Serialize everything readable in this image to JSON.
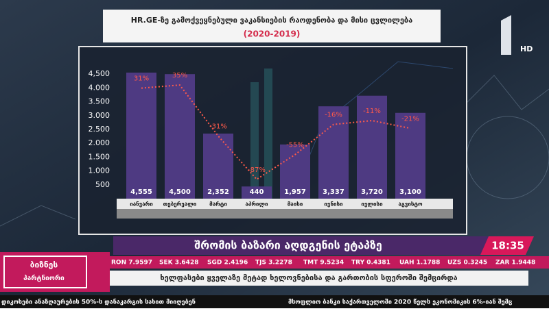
{
  "chart_data": {
    "type": "bar",
    "title": "HR.GE-ზე გამოქვეყნებული ვაკანსიების რაოდენობა და მისი ცვლილება",
    "subtitle": "(2020-2019)",
    "categories": [
      "იანვარი",
      "თებერვალი",
      "მარტი",
      "აპრილი",
      "მაისი",
      "ივნისი",
      "ივლისი",
      "აგვისტო"
    ],
    "series": [
      {
        "type": "bar",
        "color": "#4e3a82",
        "values": [
          4555,
          4500,
          2352,
          440,
          1957,
          3337,
          3720,
          3100
        ],
        "value_labels": [
          "4,555",
          "4,500",
          "2,352",
          "440",
          "1,957",
          "3,337",
          "3,720",
          "3,100"
        ]
      },
      {
        "type": "line",
        "axis": "y2",
        "color": "#ff5a4a",
        "values": [
          31,
          35,
          -31,
          -87,
          -55,
          -16,
          -11,
          -21
        ],
        "value_labels": [
          "31%",
          "35%",
          "-31%",
          "-87%",
          "-55%",
          "-16%",
          "-11%",
          "-21%"
        ]
      }
    ],
    "ylim": [
      0,
      5000
    ],
    "yticks": [
      {
        "value": 4500,
        "label": "4,500"
      },
      {
        "value": 4000,
        "label": "4.000"
      },
      {
        "value": 3500,
        "label": "3.500"
      },
      {
        "value": 3000,
        "label": "3.000"
      },
      {
        "value": 2500,
        "label": "2.500"
      },
      {
        "value": 2000,
        "label": "2.000"
      },
      {
        "value": 1500,
        "label": "1.500"
      },
      {
        "value": 1000,
        "label": "1.000"
      },
      500
    ],
    "y2lim": [
      -112,
      67
    ],
    "grid": false
  },
  "broadcast": {
    "channel_badge": "HD",
    "headline": "შრომის ბაზარი აღდგენის ეტაპზე",
    "time": "18:35",
    "subheadline": "ხელფასები ყველაზე მეტად ხელოვნებისა და გართობის სფეროში შემცირდა",
    "logo": [
      "ბიზნეს",
      "პარტნიორი"
    ],
    "rates": [
      "RON 7.9597",
      "SEK 3.6428",
      "SGD 2.4196",
      "TJS 3.2278",
      "TMT 9.5234",
      "TRY 0.4381",
      "UAH 1.1788",
      "UZS 0.3245",
      "ZAR 1.9448"
    ],
    "crawl": [
      "დიკოსები ანაზღაურების 50%-ს დანაკარგის სახით მიიღებენ",
      "მსოფლიო ბანკი საქართველოში 2020 წელს ეკონომიკის 6%-იან შემც"
    ]
  }
}
